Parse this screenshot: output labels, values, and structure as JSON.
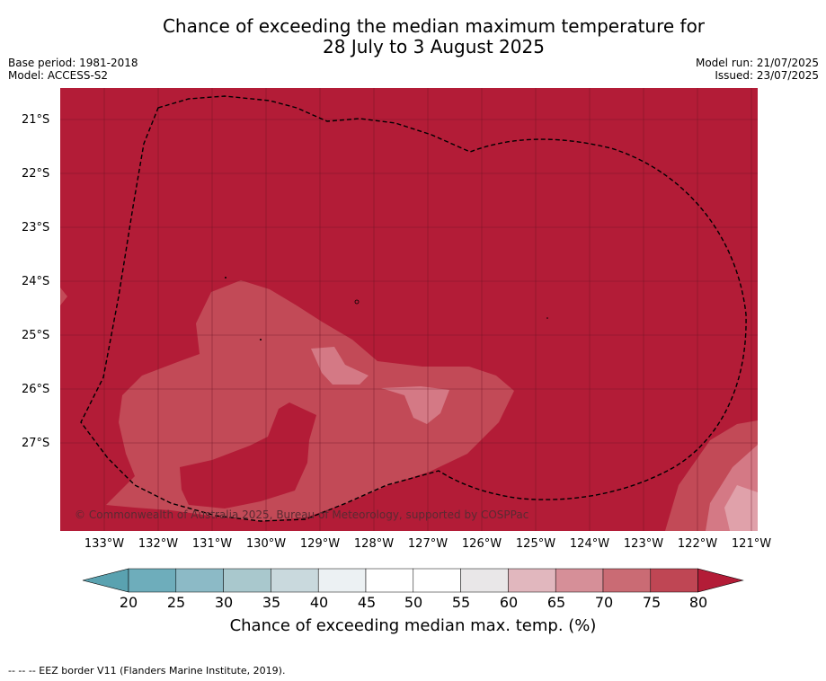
{
  "title_line1": "Chance of exceeding the median maximum temperature for",
  "title_line2": "28 July to 3 August 2025",
  "base_period": "Base period: 1981-2018",
  "model": "Model: ACCESS-S2",
  "model_run": "Model run: 21/07/2025",
  "issued": "Issued: 23/07/2025",
  "lat_labels": [
    "21°S",
    "22°S",
    "23°S",
    "24°S",
    "25°S",
    "26°S",
    "27°S"
  ],
  "lon_labels": [
    "133°W",
    "132°W",
    "131°W",
    "130°W",
    "129°W",
    "128°W",
    "127°W",
    "126°W",
    "125°W",
    "124°W",
    "123°W",
    "122°W",
    "121°W"
  ],
  "copyright": "© Commonwealth of Australia 2025, Bureau of Meteorology, supported by COSPPac",
  "colorbar": {
    "ticks": [
      "20",
      "25",
      "30",
      "35",
      "40",
      "45",
      "50",
      "55",
      "60",
      "65",
      "70",
      "75",
      "80"
    ],
    "label": "Chance of exceeding median max. temp. (%)",
    "colors": [
      "#5aa2b0",
      "#6eadbb",
      "#8cbac6",
      "#a9c8cd",
      "#c9d9dd",
      "#ecf1f3",
      "#ffffff",
      "#ffffff",
      "#e9e7e8",
      "#e1b7be",
      "#d68f98",
      "#ca6b74",
      "#bf4654",
      "#b31c37"
    ]
  },
  "legend_footnote": "--  --  -- EEZ border V11 (Flanders Marine Institute, 2019).",
  "colors": {
    "band_80_plus": "#b31c37",
    "band_75_80": "#c24a57",
    "band_70_75": "#d47985",
    "band_65_70": "#e0a1aa"
  }
}
